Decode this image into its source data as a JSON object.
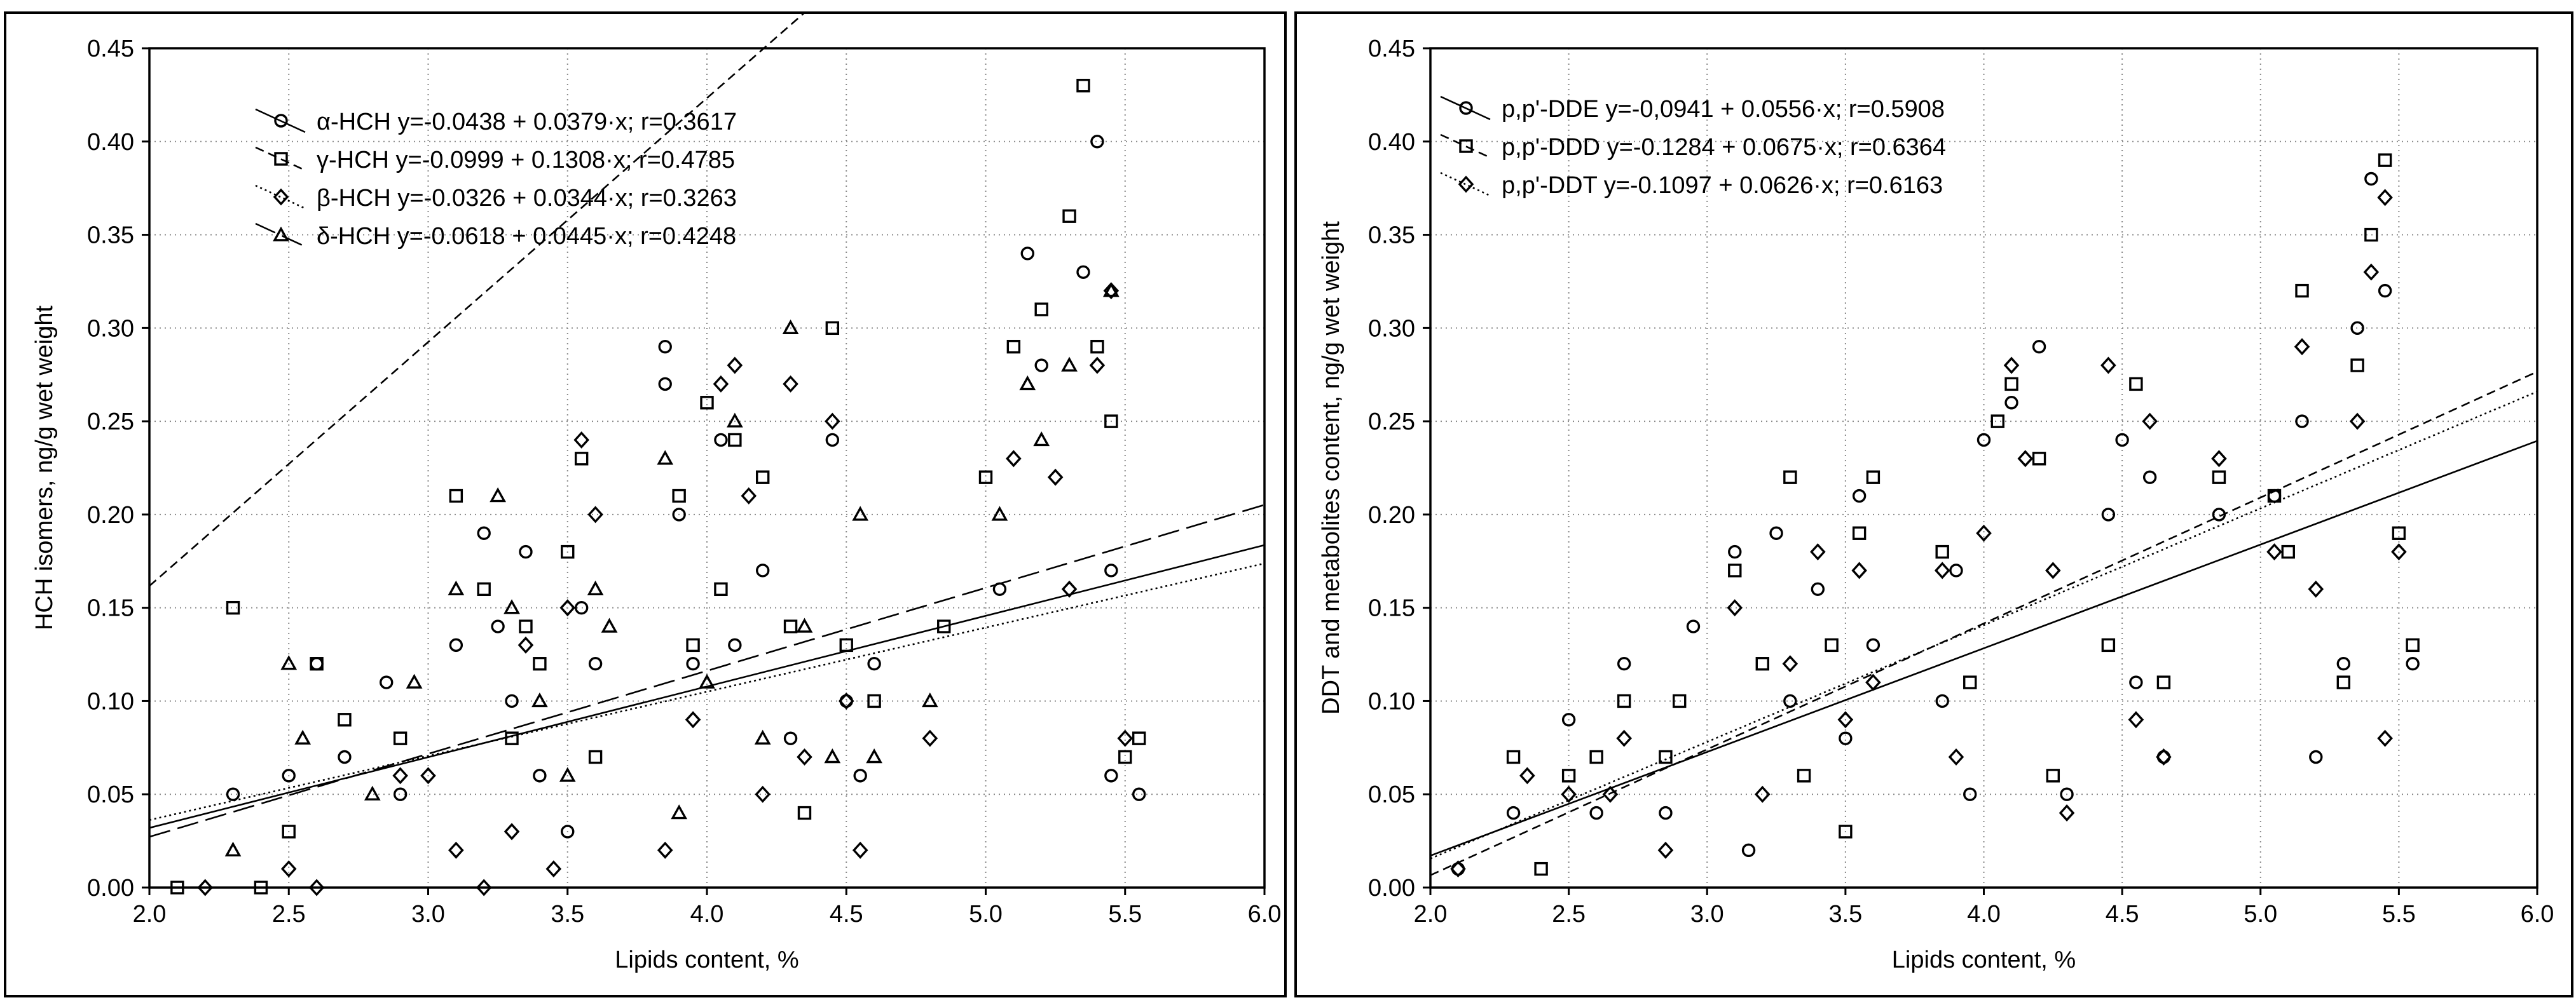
{
  "chart_data": [
    {
      "type": "scatter",
      "title": "",
      "xlabel": "Lipids content, %",
      "ylabel": "HCH isomers, ng/g wet weight",
      "xlim": [
        2.0,
        6.0
      ],
      "ylim": [
        0.0,
        0.45
      ],
      "x_ticks": [
        "2.0",
        "2.5",
        "3.0",
        "3.5",
        "4.0",
        "4.5",
        "5.0",
        "5.5",
        "6.0"
      ],
      "y_ticks": [
        "0.00",
        "0.05",
        "0.10",
        "0.15",
        "0.20",
        "0.25",
        "0.30",
        "0.35",
        "0.40",
        "0.45"
      ],
      "grid": true,
      "legend_position": "top-left",
      "series": [
        {
          "name": "α-HCH",
          "marker": "circle",
          "line": "solid",
          "legend": "α-HCH y=-0.0438 + 0.0379·x; r=0.3617",
          "intercept": -0.0438,
          "slope": 0.0379,
          "points": [
            [
              2.3,
              0.05
            ],
            [
              2.5,
              0.06
            ],
            [
              2.6,
              0.12
            ],
            [
              2.7,
              0.07
            ],
            [
              2.85,
              0.11
            ],
            [
              2.9,
              0.05
            ],
            [
              3.1,
              0.13
            ],
            [
              3.2,
              0.19
            ],
            [
              3.25,
              0.14
            ],
            [
              3.3,
              0.1
            ],
            [
              3.35,
              0.18
            ],
            [
              3.4,
              0.06
            ],
            [
              3.5,
              0.03
            ],
            [
              3.55,
              0.15
            ],
            [
              3.6,
              0.12
            ],
            [
              3.85,
              0.29
            ],
            [
              3.85,
              0.27
            ],
            [
              3.9,
              0.2
            ],
            [
              3.95,
              0.12
            ],
            [
              4.05,
              0.24
            ],
            [
              4.1,
              0.13
            ],
            [
              4.2,
              0.17
            ],
            [
              4.3,
              0.08
            ],
            [
              4.45,
              0.24
            ],
            [
              4.5,
              0.1
            ],
            [
              4.55,
              0.06
            ],
            [
              4.6,
              0.12
            ],
            [
              5.05,
              0.16
            ],
            [
              5.15,
              0.34
            ],
            [
              5.2,
              0.28
            ],
            [
              5.35,
              0.33
            ],
            [
              5.4,
              0.4
            ],
            [
              5.45,
              0.17
            ],
            [
              5.45,
              0.06
            ],
            [
              5.55,
              0.05
            ]
          ]
        },
        {
          "name": "γ-HCH",
          "marker": "square",
          "line": "dashed",
          "legend": "γ-HCH y=-0.0999 + 0.1308·x; r=0.4785",
          "intercept": -0.0999,
          "slope": 0.1308,
          "points": [
            [
              2.1,
              0.0
            ],
            [
              2.3,
              0.15
            ],
            [
              2.4,
              0.0
            ],
            [
              2.5,
              0.03
            ],
            [
              2.6,
              0.12
            ],
            [
              2.7,
              0.09
            ],
            [
              2.9,
              0.08
            ],
            [
              3.1,
              0.21
            ],
            [
              3.2,
              0.16
            ],
            [
              3.3,
              0.08
            ],
            [
              3.35,
              0.14
            ],
            [
              3.4,
              0.12
            ],
            [
              3.5,
              0.18
            ],
            [
              3.55,
              0.23
            ],
            [
              3.6,
              0.07
            ],
            [
              3.9,
              0.21
            ],
            [
              3.95,
              0.13
            ],
            [
              4.0,
              0.26
            ],
            [
              4.05,
              0.16
            ],
            [
              4.1,
              0.24
            ],
            [
              4.2,
              0.22
            ],
            [
              4.3,
              0.14
            ],
            [
              4.35,
              0.04
            ],
            [
              4.45,
              0.3
            ],
            [
              4.5,
              0.13
            ],
            [
              4.6,
              0.1
            ],
            [
              4.85,
              0.14
            ],
            [
              5.0,
              0.22
            ],
            [
              5.1,
              0.29
            ],
            [
              5.2,
              0.31
            ],
            [
              5.3,
              0.36
            ],
            [
              5.35,
              0.43
            ],
            [
              5.4,
              0.29
            ],
            [
              5.45,
              0.25
            ],
            [
              5.55,
              0.08
            ],
            [
              5.5,
              0.07
            ]
          ]
        },
        {
          "name": "β-HCH",
          "marker": "diamond",
          "line": "dotted",
          "legend": "β-HCH y=-0.0326 + 0.0344·x; r=0.3263",
          "intercept": -0.0326,
          "slope": 0.0344,
          "points": [
            [
              2.2,
              0.0
            ],
            [
              2.5,
              0.01
            ],
            [
              2.6,
              0.0
            ],
            [
              2.9,
              0.06
            ],
            [
              3.0,
              0.06
            ],
            [
              3.1,
              0.02
            ],
            [
              3.2,
              0.0
            ],
            [
              3.3,
              0.03
            ],
            [
              3.35,
              0.13
            ],
            [
              3.45,
              0.01
            ],
            [
              3.5,
              0.15
            ],
            [
              3.55,
              0.24
            ],
            [
              3.6,
              0.2
            ],
            [
              3.85,
              0.02
            ],
            [
              3.95,
              0.09
            ],
            [
              4.05,
              0.27
            ],
            [
              4.1,
              0.28
            ],
            [
              4.15,
              0.21
            ],
            [
              4.2,
              0.05
            ],
            [
              4.3,
              0.27
            ],
            [
              4.35,
              0.07
            ],
            [
              4.45,
              0.25
            ],
            [
              4.5,
              0.1
            ],
            [
              4.55,
              0.02
            ],
            [
              4.8,
              0.08
            ],
            [
              5.1,
              0.23
            ],
            [
              5.25,
              0.22
            ],
            [
              5.3,
              0.16
            ],
            [
              5.4,
              0.28
            ],
            [
              5.45,
              0.32
            ],
            [
              5.5,
              0.08
            ]
          ]
        },
        {
          "name": "δ-HCH",
          "marker": "triangle",
          "line": "long-dash",
          "legend": "δ-HCH y=-0.0618 + 0.0445·x; r=0.4248",
          "intercept": -0.0618,
          "slope": 0.0445,
          "points": [
            [
              2.3,
              0.02
            ],
            [
              2.5,
              0.12
            ],
            [
              2.55,
              0.08
            ],
            [
              2.8,
              0.05
            ],
            [
              2.95,
              0.11
            ],
            [
              3.1,
              0.16
            ],
            [
              3.25,
              0.21
            ],
            [
              3.3,
              0.15
            ],
            [
              3.4,
              0.1
            ],
            [
              3.5,
              0.06
            ],
            [
              3.6,
              0.16
            ],
            [
              3.65,
              0.14
            ],
            [
              3.85,
              0.23
            ],
            [
              3.9,
              0.04
            ],
            [
              4.0,
              0.11
            ],
            [
              4.1,
              0.25
            ],
            [
              4.2,
              0.08
            ],
            [
              4.3,
              0.3
            ],
            [
              4.35,
              0.14
            ],
            [
              4.45,
              0.07
            ],
            [
              4.55,
              0.2
            ],
            [
              4.6,
              0.07
            ],
            [
              4.8,
              0.1
            ],
            [
              5.05,
              0.2
            ],
            [
              5.15,
              0.27
            ],
            [
              5.2,
              0.24
            ],
            [
              5.3,
              0.28
            ],
            [
              5.45,
              0.32
            ]
          ]
        }
      ]
    },
    {
      "type": "scatter",
      "title": "",
      "xlabel": "Lipids content, %",
      "ylabel": "DDT and metabolites content, ng/g wet weight",
      "xlim": [
        2.0,
        6.0
      ],
      "ylim": [
        0.0,
        0.45
      ],
      "x_ticks": [
        "2.0",
        "2.5",
        "3.0",
        "3.5",
        "4.0",
        "4.5",
        "5.0",
        "5.5",
        "6.0"
      ],
      "y_ticks": [
        "0.00",
        "0.05",
        "0.10",
        "0.15",
        "0.20",
        "0.25",
        "0.30",
        "0.35",
        "0.40",
        "0.45"
      ],
      "grid": true,
      "legend_position": "top-left",
      "series": [
        {
          "name": "p,p'-DDE",
          "marker": "circle",
          "line": "solid",
          "legend": "p,p'-DDE y=-0,0941 + 0.0556·x; r=0.5908",
          "intercept": -0.0941,
          "slope": 0.0556,
          "points": [
            [
              2.1,
              0.01
            ],
            [
              2.3,
              0.04
            ],
            [
              2.5,
              0.09
            ],
            [
              2.6,
              0.04
            ],
            [
              2.7,
              0.12
            ],
            [
              2.85,
              0.04
            ],
            [
              2.95,
              0.14
            ],
            [
              3.1,
              0.18
            ],
            [
              3.15,
              0.02
            ],
            [
              3.25,
              0.19
            ],
            [
              3.3,
              0.1
            ],
            [
              3.4,
              0.16
            ],
            [
              3.5,
              0.08
            ],
            [
              3.55,
              0.21
            ],
            [
              3.6,
              0.13
            ],
            [
              3.85,
              0.1
            ],
            [
              3.9,
              0.17
            ],
            [
              3.95,
              0.05
            ],
            [
              4.0,
              0.24
            ],
            [
              4.1,
              0.26
            ],
            [
              4.2,
              0.29
            ],
            [
              4.3,
              0.05
            ],
            [
              4.45,
              0.2
            ],
            [
              4.5,
              0.24
            ],
            [
              4.55,
              0.11
            ],
            [
              4.6,
              0.22
            ],
            [
              4.65,
              0.07
            ],
            [
              4.85,
              0.2
            ],
            [
              5.05,
              0.21
            ],
            [
              5.15,
              0.25
            ],
            [
              5.2,
              0.07
            ],
            [
              5.3,
              0.12
            ],
            [
              5.35,
              0.3
            ],
            [
              5.4,
              0.38
            ],
            [
              5.45,
              0.32
            ],
            [
              5.55,
              0.12
            ]
          ]
        },
        {
          "name": "p,p'-DDD",
          "marker": "square",
          "line": "dashed",
          "legend": "p,p'-DDD y=-0.1284 + 0.0675·x; r=0.6364",
          "intercept": -0.1284,
          "slope": 0.0675,
          "points": [
            [
              2.3,
              0.07
            ],
            [
              2.4,
              0.01
            ],
            [
              2.5,
              0.06
            ],
            [
              2.6,
              0.07
            ],
            [
              2.7,
              0.1
            ],
            [
              2.85,
              0.07
            ],
            [
              2.9,
              0.1
            ],
            [
              3.1,
              0.17
            ],
            [
              3.2,
              0.12
            ],
            [
              3.3,
              0.22
            ],
            [
              3.35,
              0.06
            ],
            [
              3.45,
              0.13
            ],
            [
              3.5,
              0.03
            ],
            [
              3.55,
              0.19
            ],
            [
              3.6,
              0.22
            ],
            [
              3.85,
              0.18
            ],
            [
              3.95,
              0.11
            ],
            [
              4.05,
              0.25
            ],
            [
              4.1,
              0.27
            ],
            [
              4.2,
              0.23
            ],
            [
              4.25,
              0.06
            ],
            [
              4.45,
              0.13
            ],
            [
              4.55,
              0.27
            ],
            [
              4.65,
              0.11
            ],
            [
              4.85,
              0.22
            ],
            [
              5.05,
              0.21
            ],
            [
              5.1,
              0.18
            ],
            [
              5.15,
              0.32
            ],
            [
              5.3,
              0.11
            ],
            [
              5.35,
              0.28
            ],
            [
              5.4,
              0.35
            ],
            [
              5.45,
              0.39
            ],
            [
              5.5,
              0.19
            ],
            [
              5.55,
              0.13
            ]
          ]
        },
        {
          "name": "p,p'-DDT",
          "marker": "diamond",
          "line": "dotted",
          "legend": "p,p'-DDT y=-0.1097 + 0.0626·x; r=0.6163",
          "intercept": -0.1097,
          "slope": 0.0626,
          "points": [
            [
              2.1,
              0.01
            ],
            [
              2.35,
              0.06
            ],
            [
              2.5,
              0.05
            ],
            [
              2.65,
              0.05
            ],
            [
              2.7,
              0.08
            ],
            [
              2.85,
              0.02
            ],
            [
              3.1,
              0.15
            ],
            [
              3.2,
              0.05
            ],
            [
              3.3,
              0.12
            ],
            [
              3.4,
              0.18
            ],
            [
              3.5,
              0.09
            ],
            [
              3.55,
              0.17
            ],
            [
              3.6,
              0.11
            ],
            [
              3.85,
              0.17
            ],
            [
              3.9,
              0.07
            ],
            [
              4.0,
              0.19
            ],
            [
              4.1,
              0.28
            ],
            [
              4.15,
              0.23
            ],
            [
              4.25,
              0.17
            ],
            [
              4.3,
              0.04
            ],
            [
              4.45,
              0.28
            ],
            [
              4.55,
              0.09
            ],
            [
              4.6,
              0.25
            ],
            [
              4.65,
              0.07
            ],
            [
              4.85,
              0.23
            ],
            [
              5.05,
              0.18
            ],
            [
              5.15,
              0.29
            ],
            [
              5.2,
              0.16
            ],
            [
              5.35,
              0.25
            ],
            [
              5.4,
              0.33
            ],
            [
              5.45,
              0.37
            ],
            [
              5.45,
              0.08
            ],
            [
              5.5,
              0.18
            ]
          ]
        }
      ]
    }
  ]
}
